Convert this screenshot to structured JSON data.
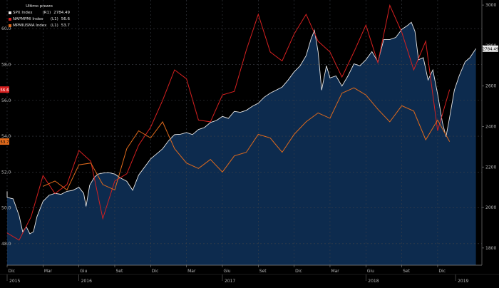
{
  "legend": {
    "title": "Ultimo prezzo",
    "items": [
      {
        "name": "SPX Index",
        "axis": "(R1)",
        "value": "2784.49",
        "color": "#e8e8e8"
      },
      {
        "name": "NAPMPMI Index",
        "axis": "(L1)",
        "value": "56.6",
        "color": "#d62020"
      },
      {
        "name": "MPMIUSMA Index",
        "axis": "(L1)",
        "value": "53.7",
        "color": "#e06a1c"
      }
    ]
  },
  "chart_data": {
    "type": "line",
    "title": "",
    "xlabel": "",
    "x_ticks": [
      "Dic",
      "Mar",
      "Giu",
      "Set",
      "Dic",
      "Mar",
      "Giu",
      "Set",
      "Dic",
      "Mar",
      "Giu",
      "Set",
      "Dic"
    ],
    "x_tick_positions": [
      0,
      3,
      6,
      9,
      12,
      15,
      18,
      21,
      24,
      27,
      30,
      33,
      36
    ],
    "year_labels": [
      {
        "label": "2015",
        "pos": 0
      },
      {
        "label": "2016",
        "pos": 6
      },
      {
        "label": "2017",
        "pos": 18
      },
      {
        "label": "2018",
        "pos": 30
      },
      {
        "label": "2019",
        "pos": 37.5
      }
    ],
    "y_left": {
      "ticks": [
        "48.0",
        "50.0",
        "52.0",
        "54.0",
        "56.0",
        "58.0",
        "60.0"
      ],
      "range": [
        46.8,
        61.6
      ]
    },
    "y_right": {
      "ticks": [
        "1800",
        "2000",
        "2200",
        "2400",
        "2600",
        "2800",
        "3000"
      ],
      "range": [
        1715,
        3025
      ]
    },
    "value_tags": [
      {
        "text": "2784.49",
        "axis": "right",
        "value": 2784.49,
        "bg": "#e8e8e8",
        "fg": "#000000"
      },
      {
        "text": "56.6",
        "axis": "left",
        "value": 56.6,
        "bg": "#d62020",
        "fg": "#ffffff"
      },
      {
        "text": "53.7",
        "axis": "left",
        "value": 53.7,
        "bg": "#e06a1c",
        "fg": "#000000"
      }
    ],
    "series": [
      {
        "name": "SPX Index",
        "axis": "right",
        "style": "area",
        "color": "#e8e8e8",
        "fill": "#0d2b4e",
        "points": [
          [
            -0.5,
            2080
          ],
          [
            0.0,
            2050
          ],
          [
            0.5,
            2043
          ],
          [
            1.0,
            1960
          ],
          [
            1.3,
            1880
          ],
          [
            1.6,
            1905
          ],
          [
            1.9,
            1870
          ],
          [
            2.2,
            1880
          ],
          [
            2.5,
            1955
          ],
          [
            3.0,
            2030
          ],
          [
            3.5,
            2060
          ],
          [
            4.0,
            2070
          ],
          [
            4.5,
            2065
          ],
          [
            5.0,
            2080
          ],
          [
            5.5,
            2085
          ],
          [
            6.0,
            2100
          ],
          [
            6.4,
            2070
          ],
          [
            6.6,
            2005
          ],
          [
            6.9,
            2110
          ],
          [
            7.3,
            2150
          ],
          [
            7.6,
            2165
          ],
          [
            8.0,
            2170
          ],
          [
            8.5,
            2172
          ],
          [
            9.0,
            2165
          ],
          [
            9.5,
            2145
          ],
          [
            10.0,
            2130
          ],
          [
            10.5,
            2085
          ],
          [
            11.0,
            2160
          ],
          [
            11.5,
            2200
          ],
          [
            12.0,
            2240
          ],
          [
            12.5,
            2265
          ],
          [
            13.0,
            2290
          ],
          [
            13.5,
            2330
          ],
          [
            14.0,
            2360
          ],
          [
            14.5,
            2362
          ],
          [
            15.0,
            2370
          ],
          [
            15.5,
            2360
          ],
          [
            16.0,
            2385
          ],
          [
            16.5,
            2395
          ],
          [
            17.0,
            2420
          ],
          [
            17.5,
            2430
          ],
          [
            18.0,
            2450
          ],
          [
            18.5,
            2440
          ],
          [
            19.0,
            2475
          ],
          [
            19.5,
            2470
          ],
          [
            20.0,
            2480
          ],
          [
            20.5,
            2500
          ],
          [
            21.0,
            2515
          ],
          [
            21.5,
            2545
          ],
          [
            22.0,
            2565
          ],
          [
            22.5,
            2580
          ],
          [
            23.0,
            2595
          ],
          [
            23.5,
            2630
          ],
          [
            24.0,
            2670
          ],
          [
            24.5,
            2700
          ],
          [
            25.0,
            2750
          ],
          [
            25.4,
            2830
          ],
          [
            25.7,
            2875
          ],
          [
            26.0,
            2770
          ],
          [
            26.3,
            2580
          ],
          [
            26.7,
            2700
          ],
          [
            27.0,
            2640
          ],
          [
            27.5,
            2650
          ],
          [
            28.0,
            2600
          ],
          [
            28.5,
            2650
          ],
          [
            29.0,
            2710
          ],
          [
            29.5,
            2700
          ],
          [
            30.0,
            2730
          ],
          [
            30.5,
            2770
          ],
          [
            31.0,
            2720
          ],
          [
            31.5,
            2830
          ],
          [
            32.0,
            2830
          ],
          [
            32.5,
            2840
          ],
          [
            33.0,
            2880
          ],
          [
            33.5,
            2900
          ],
          [
            33.8,
            2915
          ],
          [
            34.1,
            2870
          ],
          [
            34.4,
            2730
          ],
          [
            34.8,
            2740
          ],
          [
            35.2,
            2630
          ],
          [
            35.6,
            2680
          ],
          [
            36.0,
            2560
          ],
          [
            36.4,
            2420
          ],
          [
            36.7,
            2350
          ],
          [
            37.0,
            2445
          ],
          [
            37.4,
            2580
          ],
          [
            37.8,
            2650
          ],
          [
            38.3,
            2720
          ],
          [
            38.7,
            2740
          ],
          [
            39.2,
            2784.49
          ]
        ]
      },
      {
        "name": "NAPMPMI Index",
        "axis": "left",
        "style": "line",
        "color": "#d62020",
        "points": [
          [
            0,
            48.6
          ],
          [
            1,
            48.2
          ],
          [
            2,
            49.5
          ],
          [
            3,
            51.8
          ],
          [
            4,
            50.8
          ],
          [
            5,
            51.3
          ],
          [
            6,
            53.2
          ],
          [
            7,
            52.6
          ],
          [
            8,
            49.4
          ],
          [
            9,
            51.5
          ],
          [
            10,
            51.9
          ],
          [
            11,
            53.5
          ],
          [
            12,
            54.5
          ],
          [
            13,
            56.0
          ],
          [
            14,
            57.7
          ],
          [
            15,
            57.2
          ],
          [
            16,
            54.9
          ],
          [
            17,
            54.8
          ],
          [
            18,
            56.3
          ],
          [
            19,
            56.5
          ],
          [
            20,
            58.8
          ],
          [
            21,
            60.8
          ],
          [
            22,
            58.7
          ],
          [
            23,
            58.2
          ],
          [
            24,
            59.7
          ],
          [
            25,
            60.8
          ],
          [
            26,
            59.3
          ],
          [
            27,
            58.7
          ],
          [
            28,
            57.3
          ],
          [
            29,
            58.7
          ],
          [
            30,
            60.2
          ],
          [
            31,
            58.1
          ],
          [
            32,
            61.3
          ],
          [
            33,
            59.8
          ],
          [
            34,
            57.7
          ],
          [
            35,
            59.3
          ],
          [
            36,
            54.3
          ],
          [
            37,
            56.6
          ]
        ]
      },
      {
        "name": "MPMIUSMA Index",
        "axis": "left",
        "style": "line",
        "color": "#e06a1c",
        "points": [
          [
            3,
            51.2
          ],
          [
            4,
            51.5
          ],
          [
            5,
            51.0
          ],
          [
            6,
            52.4
          ],
          [
            7,
            52.5
          ],
          [
            8,
            51.3
          ],
          [
            9,
            51.0
          ],
          [
            10,
            53.3
          ],
          [
            11,
            54.3
          ],
          [
            12,
            53.9
          ],
          [
            13,
            54.8
          ],
          [
            14,
            53.3
          ],
          [
            15,
            52.5
          ],
          [
            16,
            52.2
          ],
          [
            17,
            52.7
          ],
          [
            18,
            52.0
          ],
          [
            19,
            52.9
          ],
          [
            20,
            53.1
          ],
          [
            21,
            54.1
          ],
          [
            22,
            53.9
          ],
          [
            23,
            53.1
          ],
          [
            24,
            54.1
          ],
          [
            25,
            54.8
          ],
          [
            26,
            55.3
          ],
          [
            27,
            55.0
          ],
          [
            28,
            56.4
          ],
          [
            29,
            56.7
          ],
          [
            30,
            56.3
          ],
          [
            31,
            55.5
          ],
          [
            32,
            54.8
          ],
          [
            33,
            55.7
          ],
          [
            34,
            55.4
          ],
          [
            35,
            53.8
          ],
          [
            36,
            54.9
          ],
          [
            37,
            53.7
          ]
        ]
      }
    ]
  }
}
